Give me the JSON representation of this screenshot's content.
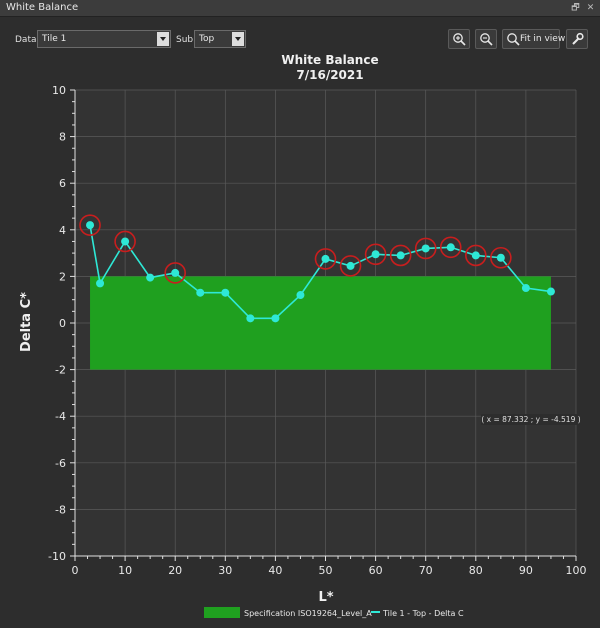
{
  "window": {
    "title": "White Balance",
    "float_glyph": "🗗",
    "close_glyph": "✕"
  },
  "toolbar": {
    "data_label": "Data",
    "data_value": "Tile 1",
    "sub_label": "Sub",
    "sub_value": "Top",
    "zoom_in_icon": "zoom-in-icon",
    "zoom_out_icon": "zoom-out-icon",
    "fit_label": "Fit in view",
    "settings_icon": "wrench-icon"
  },
  "chart_data": {
    "type": "line",
    "title": "White Balance",
    "subtitle": "7/16/2021",
    "xlabel": "L*",
    "ylabel": "Delta C*",
    "xlim": [
      0,
      100
    ],
    "ylim": [
      -10,
      10
    ],
    "x_ticks": [
      0,
      10,
      20,
      30,
      40,
      50,
      60,
      70,
      80,
      90,
      100
    ],
    "y_ticks": [
      -10,
      -8,
      -6,
      -4,
      -2,
      0,
      2,
      4,
      6,
      8,
      10
    ],
    "grid": true,
    "band": {
      "name": "Specification ISO19264_Level_A",
      "x": [
        3,
        95
      ],
      "y": [
        -2,
        2
      ],
      "color": "#1fa01f"
    },
    "series": [
      {
        "name": "Tile 1 - Top - Delta C",
        "color": "#2ee8d6",
        "x": [
          3,
          5,
          10,
          15,
          20,
          25,
          30,
          35,
          40,
          45,
          50,
          55,
          60,
          65,
          70,
          75,
          80,
          85,
          90,
          95
        ],
        "y": [
          4.2,
          1.7,
          3.5,
          1.95,
          2.15,
          1.3,
          1.3,
          0.2,
          0.2,
          1.2,
          2.75,
          2.45,
          2.95,
          2.9,
          3.2,
          3.25,
          2.9,
          2.8,
          1.5,
          1.35
        ],
        "flagged": [
          true,
          false,
          true,
          false,
          true,
          false,
          false,
          false,
          false,
          false,
          true,
          true,
          true,
          true,
          true,
          true,
          true,
          true,
          false,
          false
        ]
      }
    ],
    "flag_color": "#c81e1e",
    "cursor_readout": "( x = 87.332 ; y = -4.519 )",
    "legend_position": "bottom"
  }
}
